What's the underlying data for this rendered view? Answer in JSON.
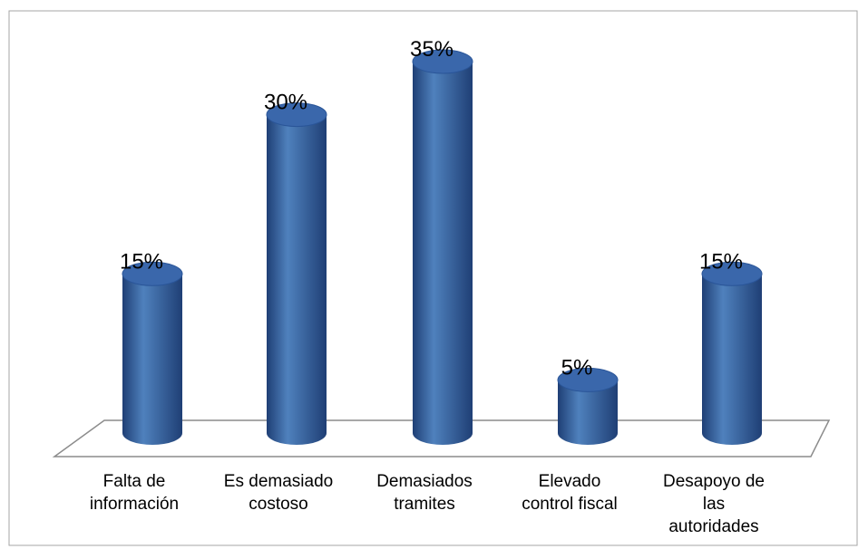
{
  "chart_data": {
    "type": "bar",
    "style": "3d-cylinder",
    "categories": [
      [
        "Falta de",
        "información"
      ],
      [
        "Es demasiado",
        "costoso"
      ],
      [
        "Demasiados",
        "tramites"
      ],
      [
        "Elevado",
        "control fiscal"
      ],
      [
        "Desapoyo de",
        "las",
        "autoridades"
      ]
    ],
    "values": [
      15,
      30,
      35,
      5,
      15
    ],
    "data_labels": [
      "15%",
      "30%",
      "35%",
      "5%",
      "15%"
    ],
    "title": "",
    "xlabel": "",
    "ylabel": "",
    "ylim": [
      0,
      35
    ],
    "grid": false,
    "legend": "none",
    "colors": {
      "bar_fill": "#4f81bd",
      "bar_dark": "#1f3f75",
      "bar_top": "#3a67ab",
      "floor_stroke": "#8c8c8c",
      "frame_stroke": "#a6a6a6"
    }
  }
}
